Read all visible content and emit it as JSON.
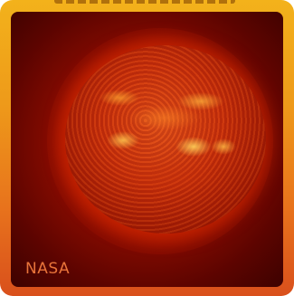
{
  "image": {
    "credit": "NASA"
  }
}
